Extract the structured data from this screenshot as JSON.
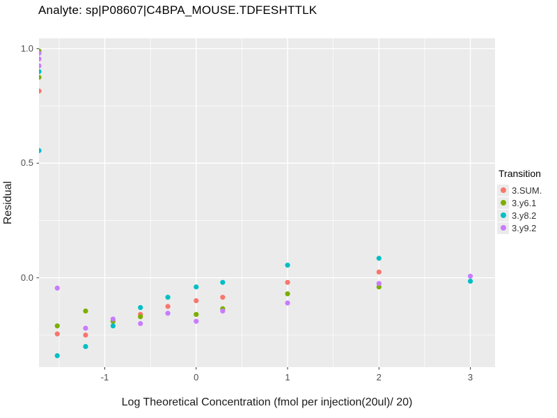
{
  "title": "Analyte: sp|P08607|C4BPA_MOUSE.TDFESHTTLK",
  "chart_data": {
    "type": "scatter",
    "title": "Analyte: sp|P08607|C4BPA_MOUSE.TDFESHTTLK",
    "xlabel": "Log Theoretical Concentration (fmol per injection(20ul)/ 20)",
    "ylabel": "Residual",
    "xlim": [
      -1.72,
      3.27
    ],
    "ylim": [
      -0.39,
      1.045
    ],
    "x_major_ticks": [
      -1,
      0,
      1,
      2,
      3
    ],
    "x_tick_labels": [
      "-1",
      "0",
      "1",
      "2",
      "3"
    ],
    "x_minor_ticks": [
      -1.5,
      -0.5,
      0.5,
      1.5,
      2.5
    ],
    "y_major_ticks": [
      0,
      0.5,
      1.0
    ],
    "y_tick_labels": [
      "0.0",
      "0.5",
      "1.0"
    ],
    "y_minor_ticks": [
      -0.25,
      0.25,
      0.75
    ],
    "grid": true,
    "panel_bg": "#ebebeb",
    "grid_color": "#ffffff",
    "tick_color": "#333333",
    "legend_title": "Transition",
    "legend_position": "right",
    "series": [
      {
        "name": "3.SUM.",
        "color": "#F8766D",
        "points": [
          [
            -1.72,
            0.815
          ],
          [
            -1.52,
            -0.245
          ],
          [
            -1.21,
            -0.25
          ],
          [
            -0.61,
            -0.16
          ],
          [
            -0.31,
            -0.125
          ],
          [
            0.0,
            -0.1
          ],
          [
            0.29,
            -0.085
          ],
          [
            1.0,
            -0.02
          ],
          [
            2.0,
            0.025
          ]
        ]
      },
      {
        "name": "3.y6.1",
        "color": "#7CAE00",
        "points": [
          [
            -1.72,
            0.99
          ],
          [
            -1.72,
            0.875
          ],
          [
            -1.52,
            -0.21
          ],
          [
            -1.21,
            -0.145
          ],
          [
            -0.91,
            -0.19
          ],
          [
            -0.61,
            -0.17
          ],
          [
            0.0,
            -0.16
          ],
          [
            0.29,
            -0.135
          ],
          [
            1.0,
            -0.07
          ],
          [
            2.0,
            -0.04
          ]
        ]
      },
      {
        "name": "3.y8.2",
        "color": "#00BFC4",
        "points": [
          [
            -1.72,
            0.9
          ],
          [
            -1.72,
            0.555
          ],
          [
            -1.52,
            -0.34
          ],
          [
            -1.21,
            -0.3
          ],
          [
            -0.91,
            -0.21
          ],
          [
            -0.61,
            -0.13
          ],
          [
            -0.31,
            -0.085
          ],
          [
            0.0,
            -0.04
          ],
          [
            0.29,
            -0.02
          ],
          [
            1.0,
            0.055
          ],
          [
            2.0,
            0.085
          ],
          [
            3.0,
            -0.015
          ]
        ]
      },
      {
        "name": "3.y9.2",
        "color": "#C77CFF",
        "points": [
          [
            -1.72,
            0.98
          ],
          [
            -1.72,
            0.955
          ],
          [
            -1.72,
            0.925
          ],
          [
            -1.52,
            -0.045
          ],
          [
            -1.21,
            -0.22
          ],
          [
            -0.91,
            -0.18
          ],
          [
            -0.61,
            -0.2
          ],
          [
            -0.31,
            -0.155
          ],
          [
            0.0,
            -0.19
          ],
          [
            0.29,
            -0.145
          ],
          [
            1.0,
            -0.11
          ],
          [
            2.0,
            -0.025
          ],
          [
            3.0,
            0.007
          ]
        ]
      }
    ]
  }
}
